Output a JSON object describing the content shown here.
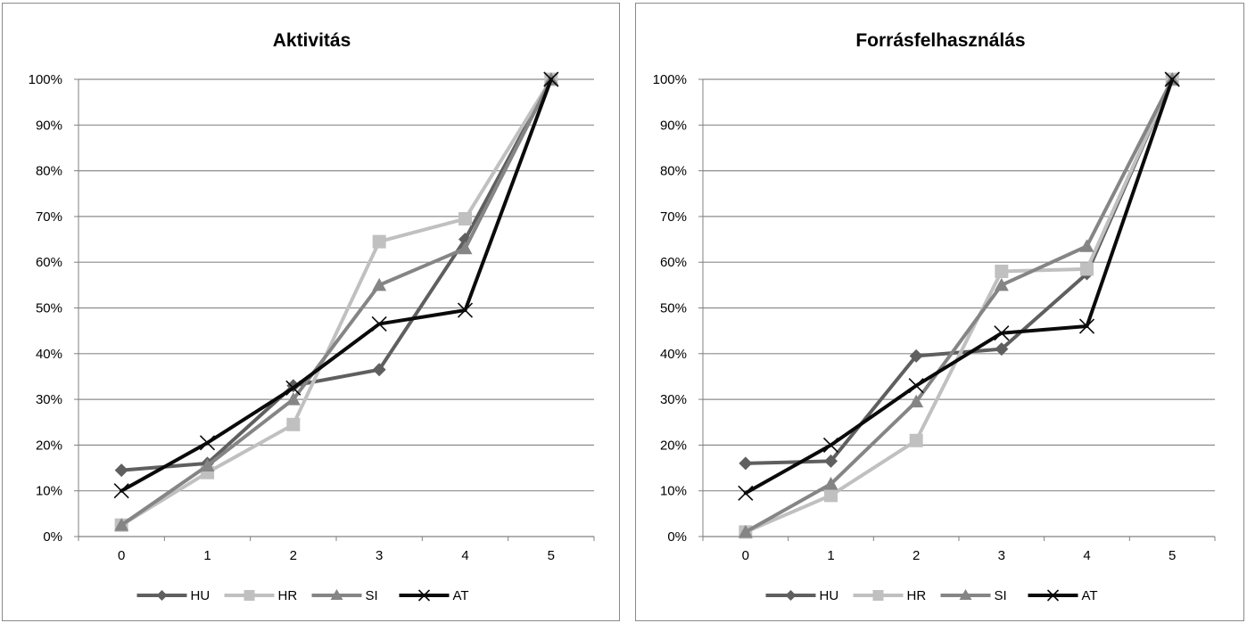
{
  "series_styles": {
    "HU": {
      "color": "#5f5f5f",
      "marker": "diamond"
    },
    "HR": {
      "color": "#c0c0c0",
      "marker": "square"
    },
    "SI": {
      "color": "#858585",
      "marker": "triangle"
    },
    "AT": {
      "color": "#0a0a0a",
      "marker": "x"
    }
  },
  "chart_data": [
    {
      "type": "line",
      "title": "Aktivitás",
      "categories": [
        "0",
        "1",
        "2",
        "3",
        "4",
        "5"
      ],
      "ylim": [
        0,
        100
      ],
      "y_ticks": [
        "0%",
        "10%",
        "20%",
        "30%",
        "40%",
        "50%",
        "60%",
        "70%",
        "80%",
        "90%",
        "100%"
      ],
      "grid": true,
      "legend_position": "bottom",
      "series": [
        {
          "name": "HU",
          "values": [
            14.5,
            16,
            33,
            36.5,
            65,
            100
          ]
        },
        {
          "name": "HR",
          "values": [
            2.5,
            14,
            24.5,
            64.5,
            69.5,
            100
          ]
        },
        {
          "name": "SI",
          "values": [
            2.5,
            15.5,
            30,
            55,
            63,
            100
          ]
        },
        {
          "name": "AT",
          "values": [
            10,
            20.5,
            32.5,
            46.5,
            49.5,
            100
          ]
        }
      ]
    },
    {
      "type": "line",
      "title": "Forrásfelhasználás",
      "categories": [
        "0",
        "1",
        "2",
        "3",
        "4",
        "5"
      ],
      "ylim": [
        0,
        100
      ],
      "y_ticks": [
        "0%",
        "10%",
        "20%",
        "30%",
        "40%",
        "50%",
        "60%",
        "70%",
        "80%",
        "90%",
        "100%"
      ],
      "grid": true,
      "legend_position": "bottom",
      "series": [
        {
          "name": "HU",
          "values": [
            16,
            16.5,
            39.5,
            41,
            57.5,
            100
          ]
        },
        {
          "name": "HR",
          "values": [
            1,
            9,
            21,
            58,
            58.5,
            100
          ]
        },
        {
          "name": "SI",
          "values": [
            1,
            11.5,
            29.5,
            55,
            63.5,
            100
          ]
        },
        {
          "name": "AT",
          "values": [
            9.5,
            20,
            33,
            44.5,
            46,
            100
          ]
        }
      ]
    }
  ]
}
